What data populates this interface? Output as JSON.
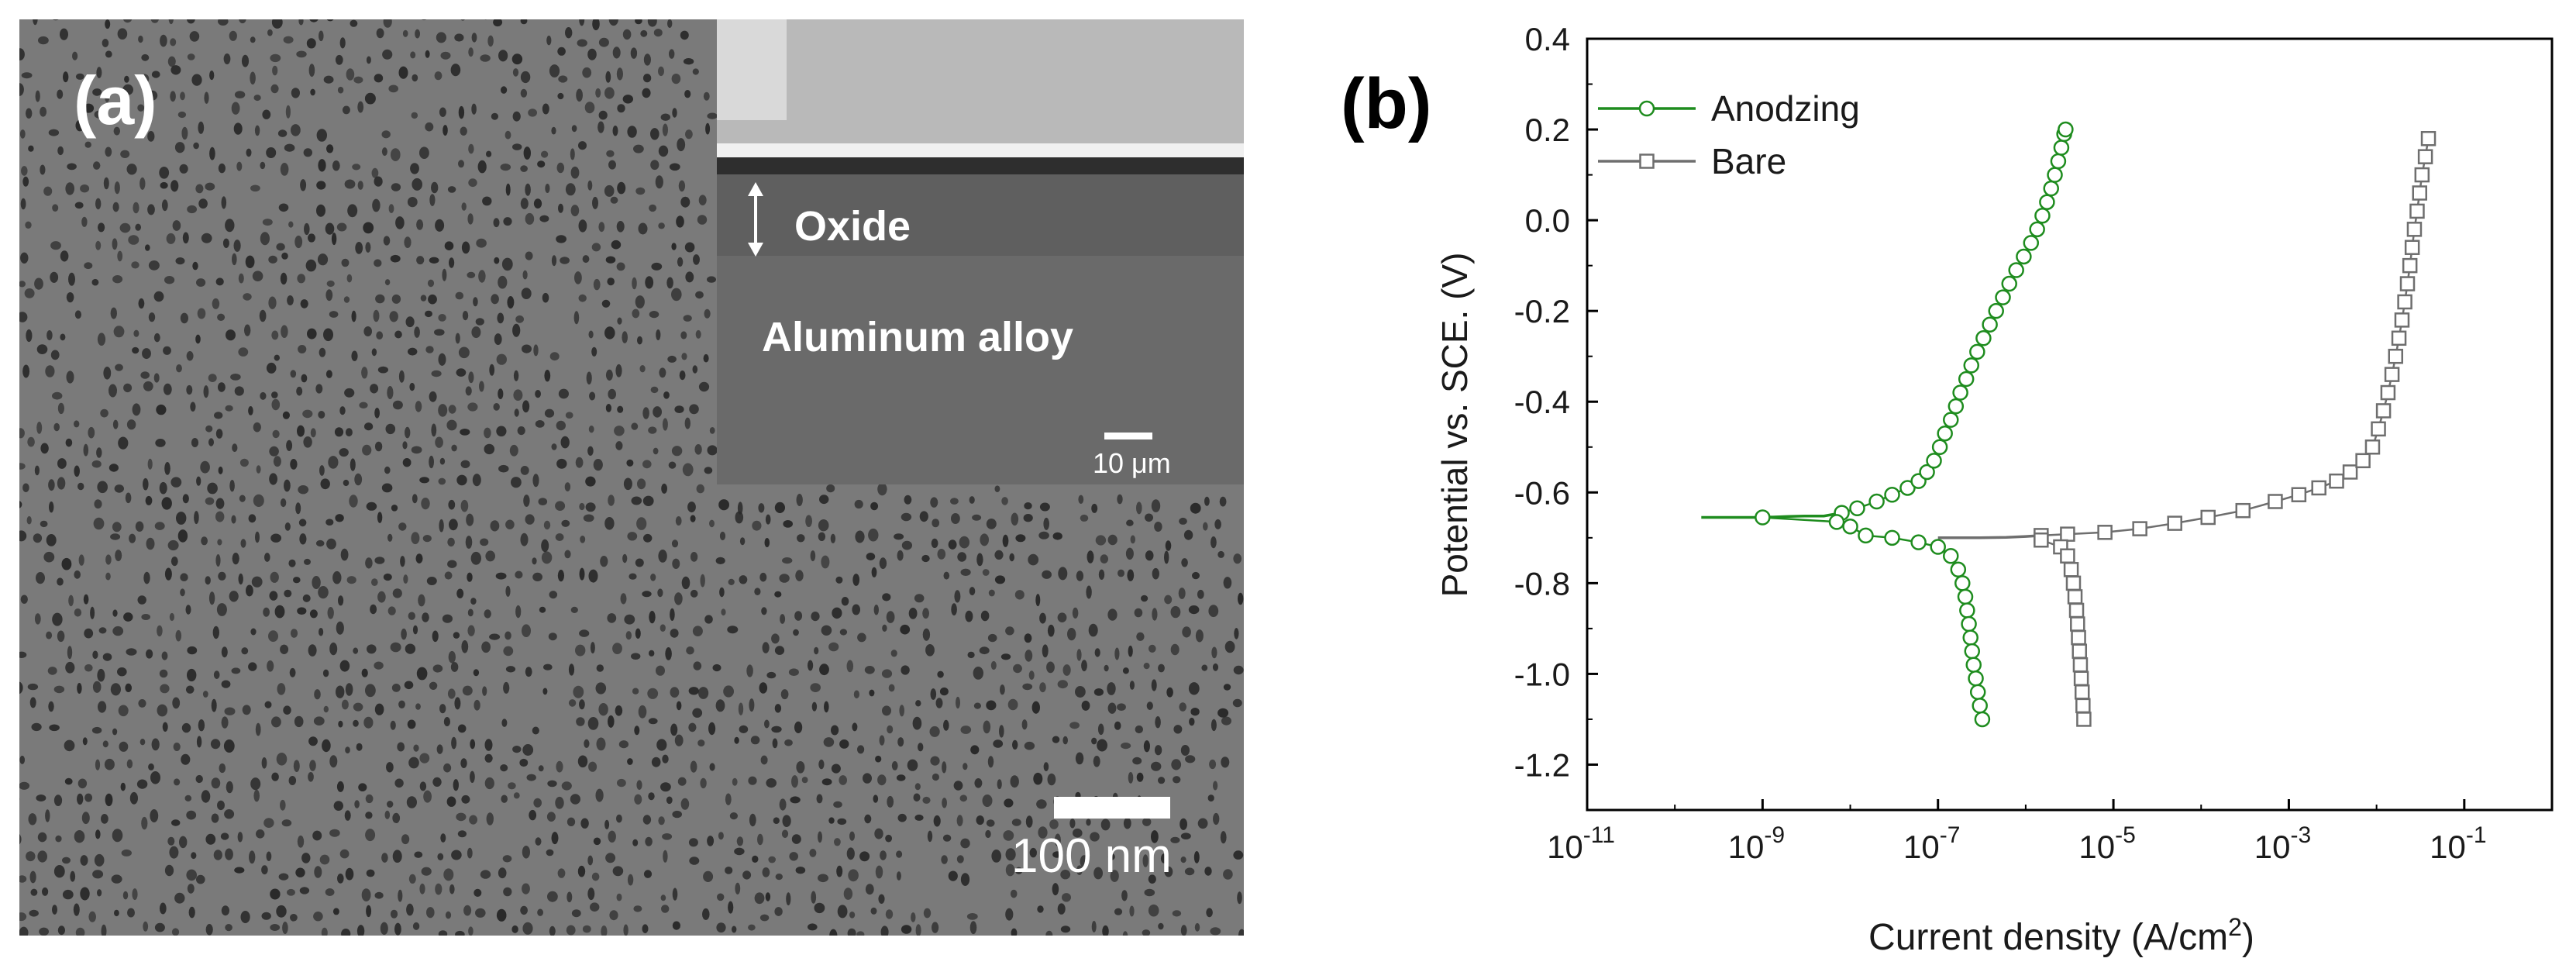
{
  "panel_a": {
    "letter": "(a)",
    "inset": {
      "oxide_label": "Oxide",
      "substrate_label": "Aluminum alloy",
      "scale_label": "10 μm"
    },
    "scale_label": "100 nm"
  },
  "panel_b": {
    "letter": "(b)"
  },
  "colors": {
    "anodzing": "#1e8c1e",
    "bare": "#6e6e6e",
    "sem_background": "#7a7a7a",
    "pore": "#2a2a2a"
  },
  "chart_data": {
    "type": "line",
    "xlabel": "Current density (A/cm",
    "xlabel_sup": "2",
    "xlabel_end": ")",
    "ylabel": "Potential vs. SCE. (V)",
    "x_scale": "log",
    "xlim": [
      1e-11,
      1
    ],
    "ylim": [
      -1.3,
      0.4
    ],
    "x_ticks": [
      {
        "base": "10",
        "exp": "-11",
        "value": 1e-11
      },
      {
        "base": "10",
        "exp": "-9",
        "value": 1e-09
      },
      {
        "base": "10",
        "exp": "-7",
        "value": 1e-07
      },
      {
        "base": "10",
        "exp": "-5",
        "value": 1e-05
      },
      {
        "base": "10",
        "exp": "-3",
        "value": 0.001
      },
      {
        "base": "10",
        "exp": "-1",
        "value": 0.1
      }
    ],
    "y_ticks": [
      "0.4",
      "0.2",
      "0.0",
      "-0.2",
      "-0.4",
      "-0.6",
      "-0.8",
      "-1.0",
      "-1.2"
    ],
    "y_tick_values": [
      0.4,
      0.2,
      0.0,
      -0.2,
      -0.4,
      -0.6,
      -0.8,
      -1.0,
      -1.2
    ],
    "legend_position": "top-left",
    "grid": false,
    "series": [
      {
        "name": "Anodzing",
        "marker": "circle",
        "line_points": [
          [
            2e-10,
            -0.655
          ],
          [
            1e-09,
            -0.655
          ],
          [
            2e-09,
            -0.653
          ],
          [
            3e-09,
            -0.652
          ],
          [
            5e-09,
            -0.652
          ]
        ],
        "anodic": [
          [
            8e-09,
            -0.645
          ],
          [
            1.2e-08,
            -0.635
          ],
          [
            2e-08,
            -0.62
          ],
          [
            3e-08,
            -0.605
          ],
          [
            4.5e-08,
            -0.59
          ],
          [
            6e-08,
            -0.575
          ],
          [
            7.5e-08,
            -0.555
          ],
          [
            9e-08,
            -0.53
          ],
          [
            1.05e-07,
            -0.5
          ],
          [
            1.2e-07,
            -0.47
          ],
          [
            1.4e-07,
            -0.44
          ],
          [
            1.6e-07,
            -0.41
          ],
          [
            1.8e-07,
            -0.38
          ],
          [
            2.1e-07,
            -0.35
          ],
          [
            2.4e-07,
            -0.32
          ],
          [
            2.8e-07,
            -0.29
          ],
          [
            3.3e-07,
            -0.26
          ],
          [
            3.9e-07,
            -0.23
          ],
          [
            4.6e-07,
            -0.2
          ],
          [
            5.5e-07,
            -0.17
          ],
          [
            6.5e-07,
            -0.14
          ],
          [
            7.8e-07,
            -0.11
          ],
          [
            9.5e-07,
            -0.08
          ],
          [
            1.15e-06,
            -0.05
          ],
          [
            1.35e-06,
            -0.02
          ],
          [
            1.55e-06,
            0.01
          ],
          [
            1.75e-06,
            0.04
          ],
          [
            1.95e-06,
            0.07
          ],
          [
            2.15e-06,
            0.1
          ],
          [
            2.35e-06,
            0.13
          ],
          [
            2.55e-06,
            0.16
          ],
          [
            2.75e-06,
            0.19
          ],
          [
            2.85e-06,
            0.2
          ]
        ],
        "cathodic": [
          [
            1e-09,
            -0.655
          ],
          [
            7e-09,
            -0.665
          ],
          [
            1e-08,
            -0.675
          ],
          [
            1.5e-08,
            -0.695
          ],
          [
            3e-08,
            -0.7
          ],
          [
            6e-08,
            -0.71
          ],
          [
            1e-07,
            -0.72
          ],
          [
            1.4e-07,
            -0.74
          ],
          [
            1.7e-07,
            -0.77
          ],
          [
            1.9e-07,
            -0.8
          ],
          [
            2.05e-07,
            -0.83
          ],
          [
            2.15e-07,
            -0.86
          ],
          [
            2.25e-07,
            -0.89
          ],
          [
            2.35e-07,
            -0.92
          ],
          [
            2.45e-07,
            -0.95
          ],
          [
            2.55e-07,
            -0.98
          ],
          [
            2.7e-07,
            -1.01
          ],
          [
            2.85e-07,
            -1.04
          ],
          [
            3e-07,
            -1.07
          ],
          [
            3.2e-07,
            -1.1
          ]
        ]
      },
      {
        "name": "Bare",
        "marker": "square",
        "line_points": [
          [
            1e-07,
            -0.7
          ],
          [
            3e-07,
            -0.7
          ],
          [
            6e-07,
            -0.699
          ],
          [
            1e-06,
            -0.697
          ]
        ],
        "anodic": [
          [
            1.5e-06,
            -0.695
          ],
          [
            3e-06,
            -0.692
          ],
          [
            8e-06,
            -0.688
          ],
          [
            2e-05,
            -0.68
          ],
          [
            5e-05,
            -0.668
          ],
          [
            0.00012,
            -0.655
          ],
          [
            0.0003,
            -0.64
          ],
          [
            0.0007,
            -0.62
          ],
          [
            0.0013,
            -0.605
          ],
          [
            0.0022,
            -0.59
          ],
          [
            0.0035,
            -0.575
          ],
          [
            0.005,
            -0.555
          ],
          [
            0.007,
            -0.53
          ],
          [
            0.009,
            -0.5
          ],
          [
            0.0105,
            -0.46
          ],
          [
            0.012,
            -0.42
          ],
          [
            0.0135,
            -0.38
          ],
          [
            0.015,
            -0.34
          ],
          [
            0.0165,
            -0.3
          ],
          [
            0.018,
            -0.26
          ],
          [
            0.0195,
            -0.22
          ],
          [
            0.021,
            -0.18
          ],
          [
            0.0225,
            -0.14
          ],
          [
            0.024,
            -0.1
          ],
          [
            0.0255,
            -0.06
          ],
          [
            0.027,
            -0.02
          ],
          [
            0.029,
            0.02
          ],
          [
            0.031,
            0.06
          ],
          [
            0.033,
            0.1
          ],
          [
            0.036,
            0.14
          ],
          [
            0.039,
            0.18
          ]
        ],
        "cathodic": [
          [
            1.5e-06,
            -0.705
          ],
          [
            2.5e-06,
            -0.72
          ],
          [
            3e-06,
            -0.74
          ],
          [
            3.3e-06,
            -0.77
          ],
          [
            3.5e-06,
            -0.8
          ],
          [
            3.65e-06,
            -0.83
          ],
          [
            3.8e-06,
            -0.86
          ],
          [
            3.9e-06,
            -0.89
          ],
          [
            4e-06,
            -0.92
          ],
          [
            4.1e-06,
            -0.95
          ],
          [
            4.2e-06,
            -0.98
          ],
          [
            4.3e-06,
            -1.01
          ],
          [
            4.4e-06,
            -1.04
          ],
          [
            4.5e-06,
            -1.07
          ],
          [
            4.6e-06,
            -1.1
          ]
        ]
      }
    ]
  }
}
